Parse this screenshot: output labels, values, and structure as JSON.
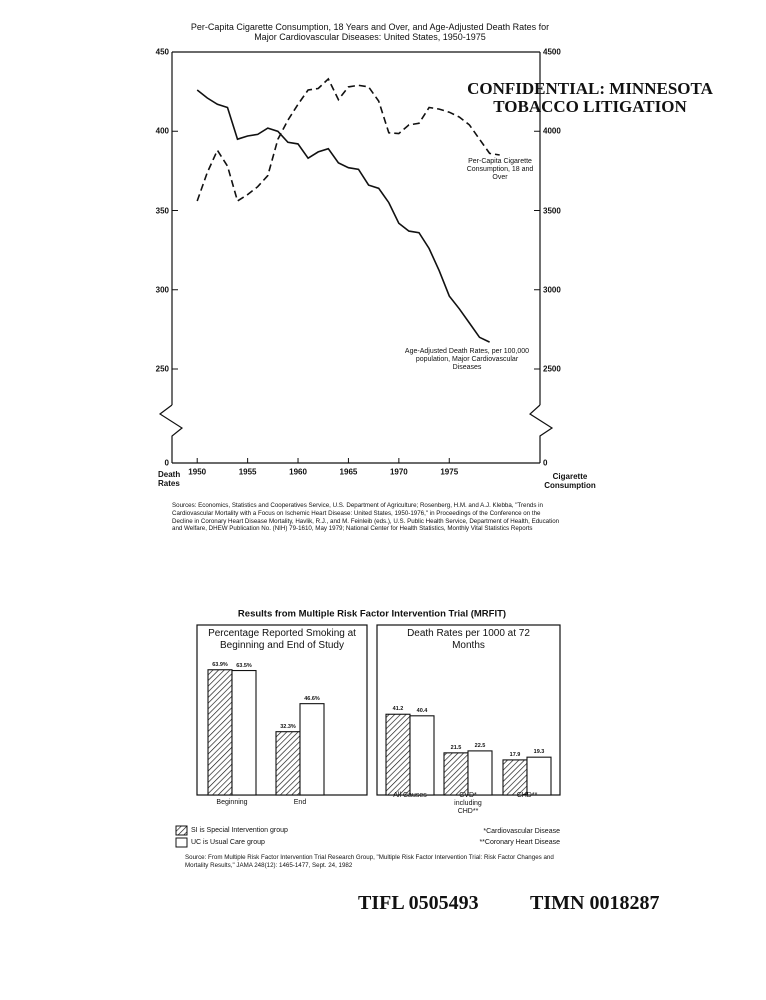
{
  "stamp": "CONFIDENTIAL: MINNESOTA TOBACCO LITIGATION",
  "sources": "Sources: Economics, Statistics and Cooperatives Service, U.S. Department of Agriculture; Rosenberg, H.M. and A.J. Klebba, \"Trends in Cardiovascular Mortality with a Focus on Ischemic Heart Disease: United States, 1950-1976,\" in Proceedings of the Conference on the Decline in Coronary Heart Disease Mortality, Havlik, R.J., and M. Feinleib (eds.), U.S. Public Health Service, Department of Health, Education and Welfare, DHEW Publication No. (NIH) 79-1610, May 1979; National Center for Health Statistics, Monthly Vital Statistics Reports",
  "bates": [
    "TIFL 0505493",
    "TIMN 0018287"
  ],
  "chart_data": [
    {
      "type": "line",
      "title": "Per-Capita Cigarette Consumption, 18 Years and Over, and Age-Adjusted Death Rates for Major Cardiovascular Diseases: United States, 1950-1975",
      "ylabel": "Death Rates",
      "y2label": "Cigarette Consumption",
      "x": [
        1950,
        1951,
        1952,
        1953,
        1954,
        1955,
        1956,
        1957,
        1958,
        1959,
        1960,
        1961,
        1962,
        1963,
        1964,
        1965,
        1966,
        1967,
        1968,
        1969,
        1970,
        1971,
        1972,
        1973,
        1974,
        1975,
        1976,
        1977,
        1978,
        1979,
        1980
      ],
      "xlim": [
        1947.5,
        1984
      ],
      "xticks": [
        1950,
        1955,
        1960,
        1965,
        1970,
        1975
      ],
      "ylim": [
        0,
        450
      ],
      "yticks": [
        0,
        250,
        300,
        350,
        400,
        450
      ],
      "y2lim": [
        0,
        4500
      ],
      "y2ticks": [
        0,
        2500,
        3000,
        3500,
        4000,
        4500
      ],
      "y_axis_break": true,
      "annotations": [
        "Per-Capita Cigarette Consumption, 18 and Over",
        "Age-Adjusted Death Rates, per 100,000 population, Major Cardiovascular Diseases"
      ],
      "series": [
        {
          "name": "Age-Adjusted Death Rates, per 100,000 population, Major Cardiovascular Diseases",
          "color": "#111111",
          "dashed": false,
          "values": [
            426,
            421,
            417,
            415,
            395,
            397,
            398,
            402,
            400,
            393,
            392,
            383,
            387,
            389,
            380,
            377,
            376,
            366,
            364,
            355,
            342,
            337,
            336,
            326,
            312,
            296,
            288,
            279,
            270,
            267,
            null
          ]
        },
        {
          "name": "Per-Capita Cigarette Consumption, 18 and Over",
          "color": "#111111",
          "dashed": true,
          "axis": "y2",
          "values": [
            3560,
            3740,
            3880,
            3780,
            3560,
            3600,
            3650,
            3720,
            3950,
            4070,
            4170,
            4260,
            4270,
            4330,
            4200,
            4280,
            4290,
            4280,
            4190,
            3990,
            3985,
            4040,
            4050,
            4150,
            4140,
            4120,
            4090,
            4040,
            3950,
            3860,
            3850
          ]
        }
      ]
    },
    {
      "type": "bar",
      "title": "Results from Multiple Risk Factor Intervention Trial (MRFIT)",
      "series": [
        {
          "name": "SI is Special Intervention group",
          "pattern": "hatched"
        },
        {
          "name": "UC is Usual Care group",
          "pattern": "none"
        }
      ],
      "panels": [
        {
          "title": "Percentage Reported Smoking at Beginning and End of Study",
          "categories": [
            "Beginning",
            "End"
          ],
          "values": [
            [
              63.9,
              32.3
            ],
            [
              63.5,
              46.6
            ]
          ],
          "value_labels": [
            [
              "63.9%",
              "32.3%"
            ],
            [
              "63.5%",
              "46.6%"
            ]
          ]
        },
        {
          "title": "Death Rates per 1000 at 72 Months",
          "categories": [
            "All Causes",
            "CVD* including CHD**",
            "CHD**"
          ],
          "values": [
            [
              41.2,
              21.5,
              17.9
            ],
            [
              40.4,
              22.5,
              19.3
            ]
          ]
        }
      ],
      "notes": [
        "*Cardiovascular Disease",
        "**Coronary Heart Disease"
      ],
      "source": "Source: From Multiple Risk Factor Intervention Trial Research Group, \"Multiple Risk Factor Intervention Trial: Risk Factor Changes and Mortality Results,\" JAMA 248(12): 1465-1477, Sept. 24, 1982"
    }
  ]
}
